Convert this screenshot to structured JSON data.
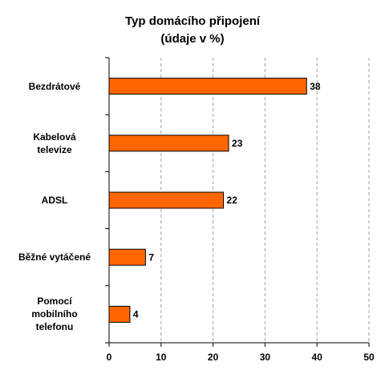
{
  "chart_data": {
    "type": "bar",
    "orientation": "horizontal",
    "title": "Typ domácího připojení",
    "subtitle": "(údaje v %)",
    "categories": [
      "Bezdrátové",
      "Kabelová\ntelevize",
      "ADSL",
      "Běžné vytáčené",
      "Pomocí\nmobilního\ntelefonu"
    ],
    "values": [
      38,
      23,
      22,
      7,
      4
    ],
    "color": "#ff6600",
    "xlim": [
      0,
      50
    ],
    "xticks": [
      0,
      10,
      20,
      30,
      40,
      50
    ],
    "grid": true
  }
}
